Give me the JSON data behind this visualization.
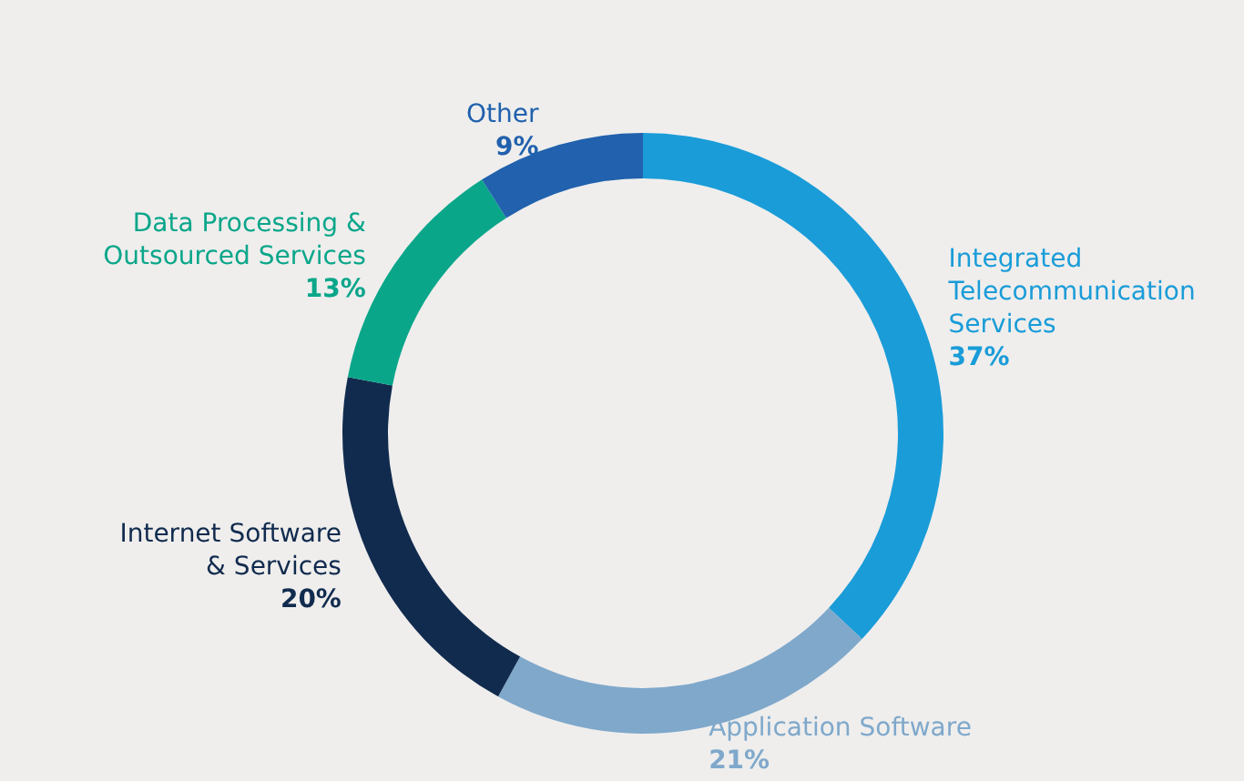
{
  "chart_data": {
    "type": "donut",
    "categories": [
      "Integrated Telecommunication Services",
      "Application Software",
      "Internet Software & Services",
      "Data Processing & Outsourced Services",
      "Other"
    ],
    "values": [
      37,
      21,
      20,
      13,
      9
    ],
    "colors": [
      "#1a9cd8",
      "#7fa8cb",
      "#112b4e",
      "#0aa68a",
      "#2161ad"
    ],
    "value_labels": [
      "37%",
      "21%",
      "20%",
      "13%",
      "9%"
    ],
    "legend": false
  }
}
